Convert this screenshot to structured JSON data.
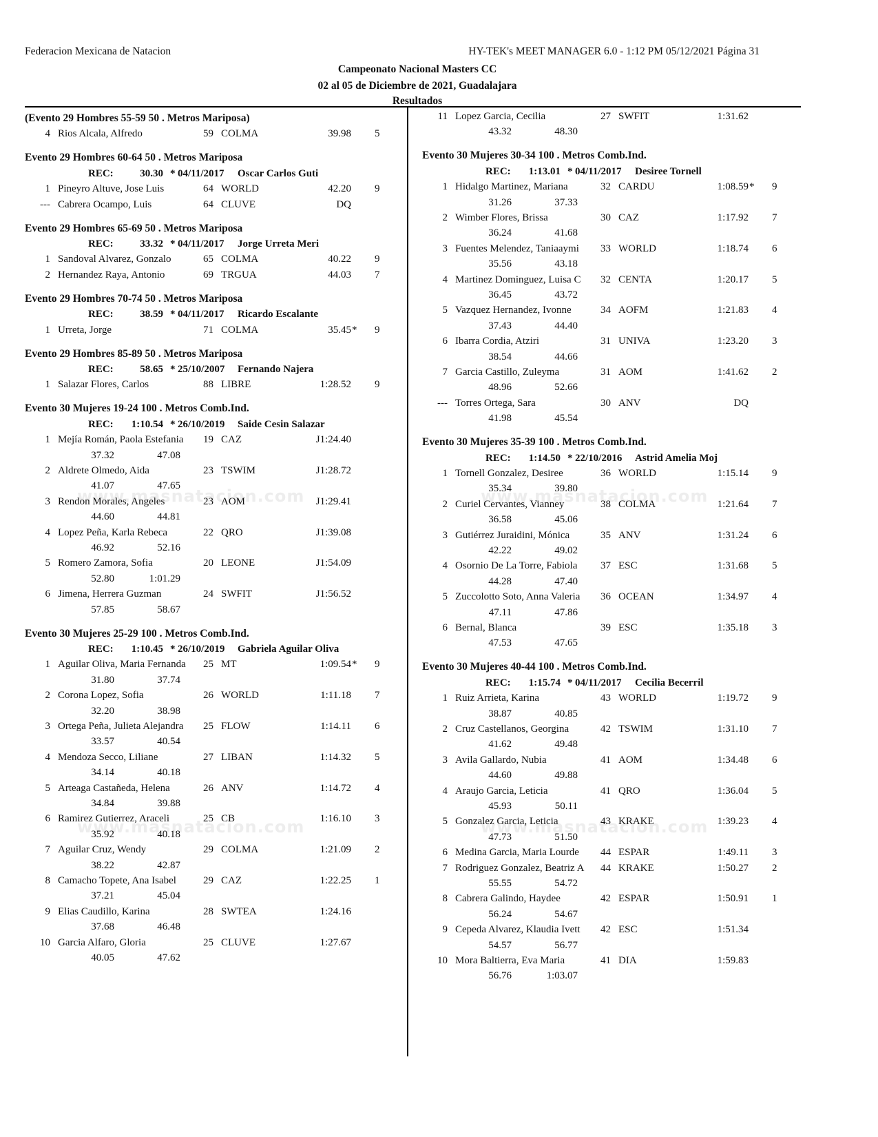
{
  "header": {
    "organization": "Federacion Mexicana de Natacion",
    "software": "HY-TEK's MEET MANAGER 6.0 - 1:12 PM  05/12/2021  Página 31",
    "meet_title": "Campeonato Nacional Masters CC",
    "meet_dates": "02 al 05 de Diciembre de 2021, Guadalajara",
    "section": "Resultados"
  },
  "watermark": "www.masnatacion.com",
  "rec_label": "REC:",
  "columns": [
    [
      {
        "title": "(Evento 29  Hombres 55-59 50 . Metros Mariposa)",
        "results": [
          {
            "place": "4",
            "name": "Rios Alcala, Alfredo",
            "age": "59",
            "team": "COLMA",
            "time": "39.98",
            "points": "5"
          }
        ]
      },
      {
        "title": "Evento 29  Hombres 60-64 50 . Metros Mariposa",
        "rec": {
          "time": "30.30",
          "mark": "*",
          "date": "04/11/2017",
          "holder": "Oscar Carlos Guti"
        },
        "results": [
          {
            "place": "1",
            "name": "Pineyro Altuve, Jose Luis",
            "age": "64",
            "team": "WORLD",
            "time": "42.20",
            "points": "9"
          },
          {
            "place": "---",
            "name": "Cabrera Ocampo, Luis",
            "age": "64",
            "team": "CLUVE",
            "time": "DQ",
            "points": ""
          }
        ]
      },
      {
        "title": "Evento 29  Hombres 65-69 50 . Metros Mariposa",
        "rec": {
          "time": "33.32",
          "mark": "*",
          "date": "04/11/2017",
          "holder": "Jorge Urreta Meri"
        },
        "results": [
          {
            "place": "1",
            "name": "Sandoval Alvarez, Gonzalo",
            "age": "65",
            "team": "COLMA",
            "time": "40.22",
            "points": "9"
          },
          {
            "place": "2",
            "name": "Hernandez Raya, Antonio",
            "age": "69",
            "team": "TRGUA",
            "time": "44.03",
            "points": "7"
          }
        ]
      },
      {
        "title": "Evento 29  Hombres 70-74 50 . Metros Mariposa",
        "rec": {
          "time": "38.59",
          "mark": "*",
          "date": "04/11/2017",
          "holder": "Ricardo Escalante"
        },
        "results": [
          {
            "place": "1",
            "name": "Urreta, Jorge",
            "age": "71",
            "team": "COLMA",
            "time": "35.45*",
            "points": "9"
          }
        ]
      },
      {
        "title": "Evento 29  Hombres 85-89 50 . Metros Mariposa",
        "rec": {
          "time": "58.65",
          "mark": "*",
          "date": "25/10/2007",
          "holder": "Fernando Najera"
        },
        "results": [
          {
            "place": "1",
            "name": "Salazar Flores, Carlos",
            "age": "88",
            "team": "LIBRE",
            "time": "1:28.52",
            "points": "9"
          }
        ]
      },
      {
        "title": "Evento 30  Mujeres 19-24 100 . Metros Comb.Ind.",
        "rec": {
          "time": "1:10.54",
          "mark": "*",
          "date": "26/10/2019",
          "holder": "Saide Cesin Salazar"
        },
        "results": [
          {
            "place": "1",
            "name": "Mejía Román, Paola Estefania",
            "age": "19",
            "team": "CAZ",
            "time": "J1:24.40",
            "points": "",
            "splits": [
              "37.32",
              "47.08"
            ]
          },
          {
            "place": "2",
            "name": "Aldrete Olmedo, Aida",
            "age": "23",
            "team": "TSWIM",
            "time": "J1:28.72",
            "points": "",
            "splits": [
              "41.07",
              "47.65"
            ]
          },
          {
            "place": "3",
            "name": "Rendon Morales, Angeles",
            "age": "23",
            "team": "AOM",
            "time": "J1:29.41",
            "points": "",
            "splits": [
              "44.60",
              "44.81"
            ]
          },
          {
            "place": "4",
            "name": "Lopez Peña, Karla Rebeca",
            "age": "22",
            "team": "QRO",
            "time": "J1:39.08",
            "points": "",
            "splits": [
              "46.92",
              "52.16"
            ]
          },
          {
            "place": "5",
            "name": "Romero Zamora, Sofia",
            "age": "20",
            "team": "LEONE",
            "time": "J1:54.09",
            "points": "",
            "splits": [
              "52.80",
              "1:01.29"
            ]
          },
          {
            "place": "6",
            "name": "Jimena, Herrera Guzman",
            "age": "24",
            "team": "SWFIT",
            "time": "J1:56.52",
            "points": "",
            "splits": [
              "57.85",
              "58.67"
            ]
          }
        ]
      },
      {
        "title": "Evento 30  Mujeres 25-29 100 . Metros Comb.Ind.",
        "rec": {
          "time": "1:10.45",
          "mark": "*",
          "date": "26/10/2019",
          "holder": "Gabriela Aguilar Oliva"
        },
        "results": [
          {
            "place": "1",
            "name": "Aguilar Oliva, Maria Fernanda",
            "age": "25",
            "team": "MT",
            "time": "1:09.54*",
            "points": "9",
            "splits": [
              "31.80",
              "37.74"
            ]
          },
          {
            "place": "2",
            "name": "Corona Lopez, Sofia",
            "age": "26",
            "team": "WORLD",
            "time": "1:11.18",
            "points": "7",
            "splits": [
              "32.20",
              "38.98"
            ]
          },
          {
            "place": "3",
            "name": "Ortega Peña, Julieta Alejandra",
            "age": "25",
            "team": "FLOW",
            "time": "1:14.11",
            "points": "6",
            "splits": [
              "33.57",
              "40.54"
            ]
          },
          {
            "place": "4",
            "name": "Mendoza Secco, Liliane",
            "age": "27",
            "team": "LIBAN",
            "time": "1:14.32",
            "points": "5",
            "splits": [
              "34.14",
              "40.18"
            ]
          },
          {
            "place": "5",
            "name": "Arteaga Castañeda, Helena",
            "age": "26",
            "team": "ANV",
            "time": "1:14.72",
            "points": "4",
            "splits": [
              "34.84",
              "39.88"
            ]
          },
          {
            "place": "6",
            "name": "Ramirez Gutierrez, Araceli",
            "age": "25",
            "team": "CB",
            "time": "1:16.10",
            "points": "3",
            "splits": [
              "35.92",
              "40.18"
            ]
          },
          {
            "place": "7",
            "name": "Aguilar Cruz, Wendy",
            "age": "29",
            "team": "COLMA",
            "time": "1:21.09",
            "points": "2",
            "splits": [
              "38.22",
              "42.87"
            ]
          },
          {
            "place": "8",
            "name": "Camacho Topete, Ana Isabel",
            "age": "29",
            "team": "CAZ",
            "time": "1:22.25",
            "points": "1",
            "splits": [
              "37.21",
              "45.04"
            ]
          },
          {
            "place": "9",
            "name": "Elias Caudillo, Karina",
            "age": "28",
            "team": "SWTEA",
            "time": "1:24.16",
            "points": "",
            "splits": [
              "37.68",
              "46.48"
            ]
          },
          {
            "place": "10",
            "name": "Garcia Alfaro, Gloria",
            "age": "25",
            "team": "CLUVE",
            "time": "1:27.67",
            "points": "",
            "splits": [
              "40.05",
              "47.62"
            ]
          }
        ]
      }
    ],
    [
      {
        "results": [
          {
            "place": "11",
            "name": "Lopez Garcia, Cecilia",
            "age": "27",
            "team": "SWFIT",
            "time": "1:31.62",
            "points": "",
            "splits": [
              "43.32",
              "48.30"
            ]
          }
        ]
      },
      {
        "title": "Evento 30  Mujeres 30-34 100 . Metros Comb.Ind.",
        "rec": {
          "time": "1:13.01",
          "mark": "*",
          "date": "04/11/2017",
          "holder": "Desiree Tornell"
        },
        "results": [
          {
            "place": "1",
            "name": "Hidalgo Martinez, Mariana",
            "age": "32",
            "team": "CARDU",
            "time": "1:08.59*",
            "points": "9",
            "splits": [
              "31.26",
              "37.33"
            ]
          },
          {
            "place": "2",
            "name": "Wimber Flores, Brissa",
            "age": "30",
            "team": "CAZ",
            "time": "1:17.92",
            "points": "7",
            "splits": [
              "36.24",
              "41.68"
            ]
          },
          {
            "place": "3",
            "name": "Fuentes Melendez, Taniaaymi",
            "age": "33",
            "team": "WORLD",
            "time": "1:18.74",
            "points": "6",
            "splits": [
              "35.56",
              "43.18"
            ]
          },
          {
            "place": "4",
            "name": "Martinez Dominguez, Luisa C",
            "age": "32",
            "team": "CENTA",
            "time": "1:20.17",
            "points": "5",
            "splits": [
              "36.45",
              "43.72"
            ]
          },
          {
            "place": "5",
            "name": "Vazquez Hernandez, Ivonne",
            "age": "34",
            "team": "AOFM",
            "time": "1:21.83",
            "points": "4",
            "splits": [
              "37.43",
              "44.40"
            ]
          },
          {
            "place": "6",
            "name": "Ibarra Cordia, Atziri",
            "age": "31",
            "team": "UNIVA",
            "time": "1:23.20",
            "points": "3",
            "splits": [
              "38.54",
              "44.66"
            ]
          },
          {
            "place": "7",
            "name": "Garcia Castillo, Zuleyma",
            "age": "31",
            "team": "AOM",
            "time": "1:41.62",
            "points": "2",
            "splits": [
              "48.96",
              "52.66"
            ]
          },
          {
            "place": "---",
            "name": "Torres Ortega, Sara",
            "age": "30",
            "team": "ANV",
            "time": "DQ",
            "points": "",
            "splits": [
              "41.98",
              "45.54"
            ]
          }
        ]
      },
      {
        "title": "Evento 30  Mujeres 35-39 100 . Metros Comb.Ind.",
        "rec": {
          "time": "1:14.50",
          "mark": "*",
          "date": "22/10/2016",
          "holder": "Astrid Amelia Moj"
        },
        "results": [
          {
            "place": "1",
            "name": "Tornell Gonzalez, Desiree",
            "age": "36",
            "team": "WORLD",
            "time": "1:15.14",
            "points": "9",
            "splits": [
              "35.34",
              "39.80"
            ]
          },
          {
            "place": "2",
            "name": "Curiel Cervantes, Vianney",
            "age": "38",
            "team": "COLMA",
            "time": "1:21.64",
            "points": "7",
            "splits": [
              "36.58",
              "45.06"
            ]
          },
          {
            "place": "3",
            "name": "Gutiérrez Juraidini, Mónica",
            "age": "35",
            "team": "ANV",
            "time": "1:31.24",
            "points": "6",
            "splits": [
              "42.22",
              "49.02"
            ]
          },
          {
            "place": "4",
            "name": "Osornio De La Torre, Fabiola",
            "age": "37",
            "team": "ESC",
            "time": "1:31.68",
            "points": "5",
            "splits": [
              "44.28",
              "47.40"
            ]
          },
          {
            "place": "5",
            "name": "Zuccolotto Soto, Anna Valeria",
            "age": "36",
            "team": "OCEAN",
            "time": "1:34.97",
            "points": "4",
            "splits": [
              "47.11",
              "47.86"
            ]
          },
          {
            "place": "6",
            "name": "Bernal, Blanca",
            "age": "39",
            "team": "ESC",
            "time": "1:35.18",
            "points": "3",
            "splits": [
              "47.53",
              "47.65"
            ]
          }
        ]
      },
      {
        "title": "Evento 30  Mujeres 40-44 100 . Metros Comb.Ind.",
        "rec": {
          "time": "1:15.74",
          "mark": "*",
          "date": "04/11/2017",
          "holder": "Cecilia Becerril"
        },
        "results": [
          {
            "place": "1",
            "name": "Ruiz Arrieta, Karina",
            "age": "43",
            "team": "WORLD",
            "time": "1:19.72",
            "points": "9",
            "splits": [
              "38.87",
              "40.85"
            ]
          },
          {
            "place": "2",
            "name": "Cruz Castellanos, Georgina",
            "age": "42",
            "team": "TSWIM",
            "time": "1:31.10",
            "points": "7",
            "splits": [
              "41.62",
              "49.48"
            ]
          },
          {
            "place": "3",
            "name": "Avila Gallardo, Nubia",
            "age": "41",
            "team": "AOM",
            "time": "1:34.48",
            "points": "6",
            "splits": [
              "44.60",
              "49.88"
            ]
          },
          {
            "place": "4",
            "name": "Araujo Garcia, Leticia",
            "age": "41",
            "team": "QRO",
            "time": "1:36.04",
            "points": "5",
            "splits": [
              "45.93",
              "50.11"
            ]
          },
          {
            "place": "5",
            "name": "Gonzalez Garcia, Leticia",
            "age": "43",
            "team": "KRAKE",
            "time": "1:39.23",
            "points": "4",
            "splits": [
              "47.73",
              "51.50"
            ]
          },
          {
            "place": "6",
            "name": "Medina Garcia, Maria Lourde",
            "age": "44",
            "team": "ESPAR",
            "time": "1:49.11",
            "points": "3"
          },
          {
            "place": "7",
            "name": "Rodriguez Gonzalez, Beatriz A",
            "age": "44",
            "team": "KRAKE",
            "time": "1:50.27",
            "points": "2",
            "splits": [
              "55.55",
              "54.72"
            ]
          },
          {
            "place": "8",
            "name": "Cabrera Galindo, Haydee",
            "age": "42",
            "team": "ESPAR",
            "time": "1:50.91",
            "points": "1",
            "splits": [
              "56.24",
              "54.67"
            ]
          },
          {
            "place": "9",
            "name": "Cepeda Alvarez, Klaudia Ivett",
            "age": "42",
            "team": "ESC",
            "time": "1:51.34",
            "points": "",
            "splits": [
              "54.57",
              "56.77"
            ]
          },
          {
            "place": "10",
            "name": "Mora Baltierra, Eva Maria",
            "age": "41",
            "team": "DIA",
            "time": "1:59.83",
            "points": "",
            "splits": [
              "56.76",
              "1:03.07"
            ]
          }
        ]
      }
    ]
  ]
}
